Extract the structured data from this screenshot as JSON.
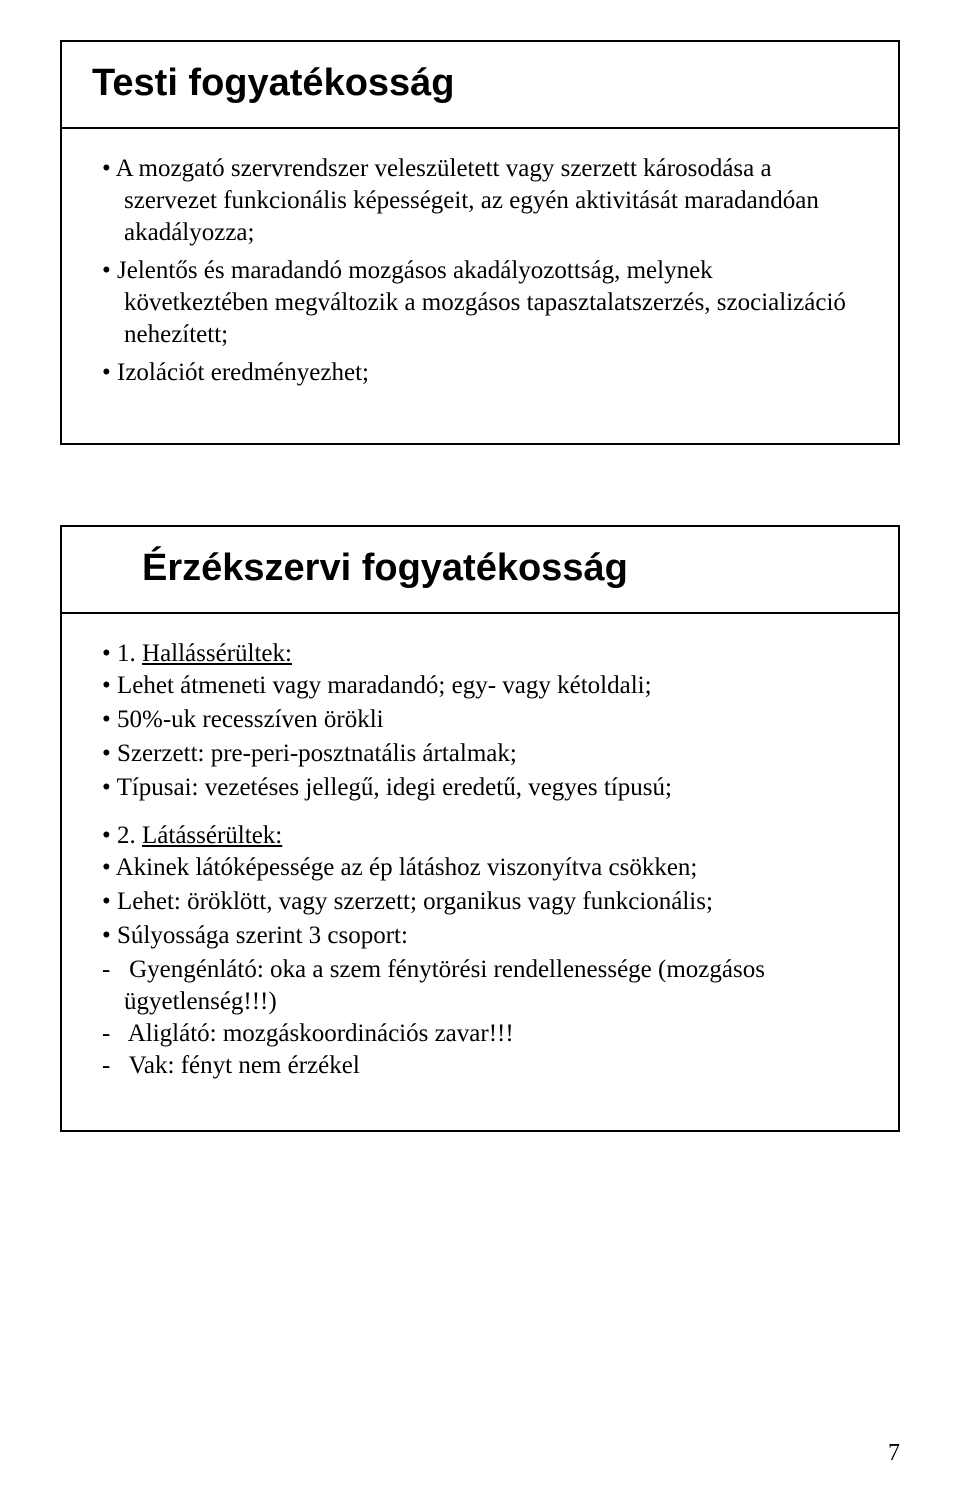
{
  "slide1": {
    "title": "Testi fogyatékosság",
    "items": [
      "A mozgató szervrendszer veleszületett vagy szerzett károsodása a szervezet funkcionális képességeit, az egyén aktivitását maradandóan akadályozza;",
      "Jelentős és maradandó mozgásos akadályozottság, melynek következtében megváltozik a mozgásos tapasztalatszerzés, szocializáció nehezített;",
      "Izolációt eredményezhet;"
    ]
  },
  "slide2": {
    "title": "Érzékszervi fogyatékosság",
    "sec1_num": "1. ",
    "sec1_head": "Hallássérültek:",
    "sec1_items": [
      "Lehet átmeneti vagy maradandó; egy- vagy kétoldali;",
      "50%-uk recesszíven örökli",
      "Szerzett: pre-peri-posztnatális ártalmak;",
      "Típusai: vezetéses jellegű, idegi eredetű, vegyes típusú;"
    ],
    "sec2_num": "2. ",
    "sec2_head": "Látássérültek:",
    "sec2_items": [
      "Akinek látóképessége az ép látáshoz viszonyítva csökken;",
      "Lehet: öröklött, vagy szerzett; organikus vagy funkcionális;",
      "Súlyossága szerint 3 csoport:"
    ],
    "sec2_dashes": [
      "Gyengénlátó: oka a szem fénytörési rendellenessége (mozgásos ügyetlenség!!!)",
      "Aliglátó: mozgáskoordinációs zavar!!!",
      "Vak: fényt nem érzékel"
    ]
  },
  "page_number": "7"
}
